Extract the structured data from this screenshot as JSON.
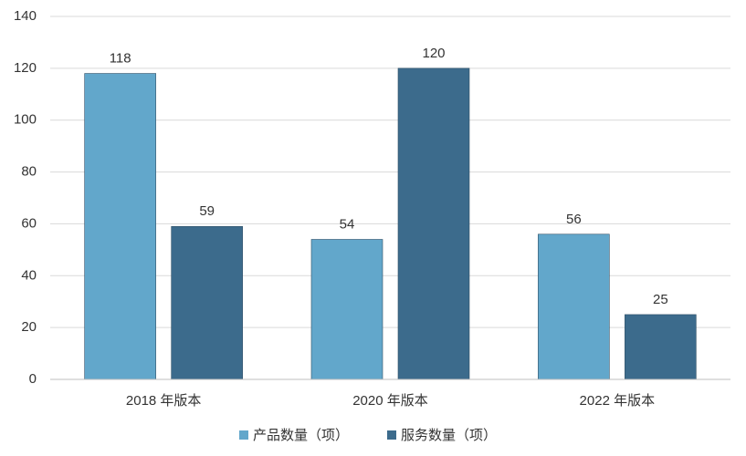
{
  "chart_data": {
    "type": "bar",
    "categories": [
      "2018 年版本",
      "2020 年版本",
      "2022 年版本"
    ],
    "series": [
      {
        "name": "产品数量（项）",
        "color": "#62a7cb",
        "values": [
          118,
          54,
          56
        ]
      },
      {
        "name": "服务数量（项）",
        "color": "#3c6b8c",
        "values": [
          59,
          120,
          25
        ]
      }
    ],
    "ylim": [
      0,
      140
    ],
    "yticks": [
      0,
      20,
      40,
      60,
      80,
      100,
      120,
      140
    ],
    "grid": true,
    "legend": "bottom"
  }
}
